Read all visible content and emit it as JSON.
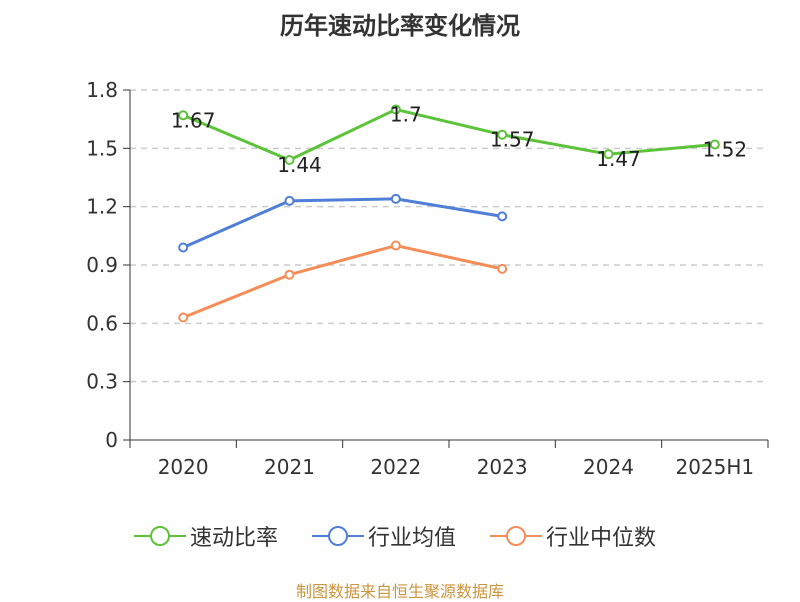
{
  "chart_data": {
    "type": "line",
    "title": "历年速动比率变化情况",
    "categories": [
      "2020",
      "2021",
      "2022",
      "2023",
      "2024",
      "2025H1"
    ],
    "y_ticks": [
      "0",
      "0.3",
      "0.6",
      "0.9",
      "1.2",
      "1.5",
      "1.8"
    ],
    "ylim": [
      0,
      1.8
    ],
    "grid": "horizontal dashed",
    "legend_position": "bottom",
    "series": [
      {
        "name": "速动比率",
        "color": "#5cc33a",
        "values": [
          1.67,
          1.44,
          1.7,
          1.57,
          1.47,
          1.52
        ],
        "labels": [
          "1.67",
          "1.44",
          "1.7",
          "1.57",
          "1.47",
          "1.52"
        ]
      },
      {
        "name": "行业均值",
        "color": "#4f7fd6",
        "values": [
          0.99,
          1.23,
          1.24,
          1.15,
          null,
          null
        ]
      },
      {
        "name": "行业中位数",
        "color": "#f58d58",
        "values": [
          0.63,
          0.85,
          1.0,
          0.88,
          null,
          null
        ]
      }
    ]
  },
  "footer": "制图数据来自恒生聚源数据库"
}
